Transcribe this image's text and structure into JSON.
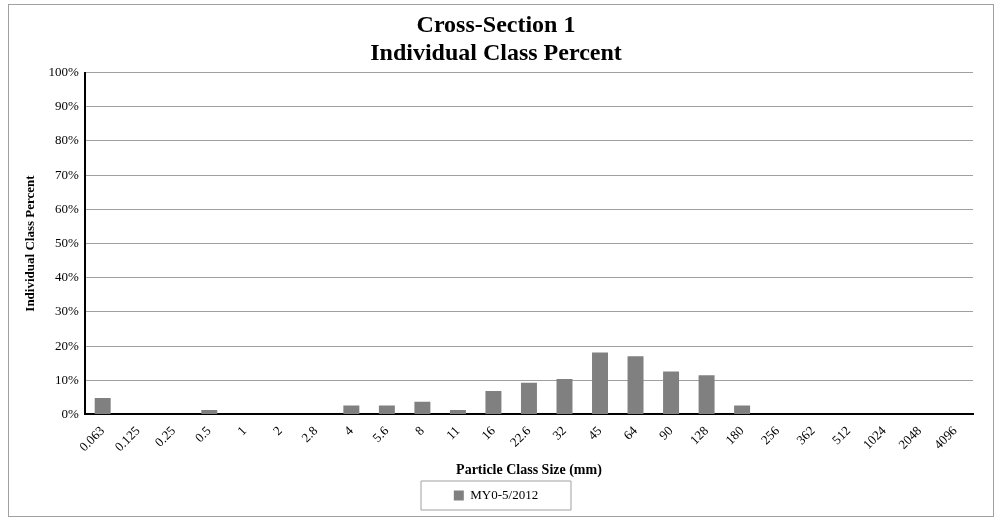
{
  "chart_data": {
    "type": "bar",
    "title": "Cross-Section 1\nIndividual Class Percent",
    "xlabel": "Particle Class Size (mm)",
    "ylabel": "Individual Class Percent",
    "categories": [
      "0.063",
      "0.125",
      "0.25",
      "0.5",
      "1",
      "2",
      "2.8",
      "4",
      "5.6",
      "8",
      "11",
      "16",
      "22.6",
      "32",
      "45",
      "64",
      "90",
      "128",
      "180",
      "256",
      "362",
      "512",
      "1024",
      "2048",
      "4096"
    ],
    "series": [
      {
        "name": "MY0-5/2012",
        "color": "#808080",
        "values": [
          4.8,
          0,
          0,
          1.3,
          0,
          0,
          0,
          2.6,
          2.6,
          3.7,
          1.3,
          6.9,
          9.3,
          10.4,
          18.1,
          17,
          12.6,
          11.5,
          2.6,
          0,
          0,
          0,
          0,
          0,
          0
        ]
      }
    ],
    "ylim": [
      0,
      100
    ],
    "yticks": [
      {
        "value": 0,
        "label": "0%"
      },
      {
        "value": 10,
        "label": "10%"
      },
      {
        "value": 20,
        "label": "20%"
      },
      {
        "value": 30,
        "label": "30%"
      },
      {
        "value": 40,
        "label": "40%"
      },
      {
        "value": 50,
        "label": "50%"
      },
      {
        "value": 60,
        "label": "60%"
      },
      {
        "value": 70,
        "label": "70%"
      },
      {
        "value": 80,
        "label": "80%"
      },
      {
        "value": 90,
        "label": "90%"
      },
      {
        "value": 100,
        "label": "100%"
      }
    ],
    "grid": "y",
    "legend": "bottom"
  }
}
